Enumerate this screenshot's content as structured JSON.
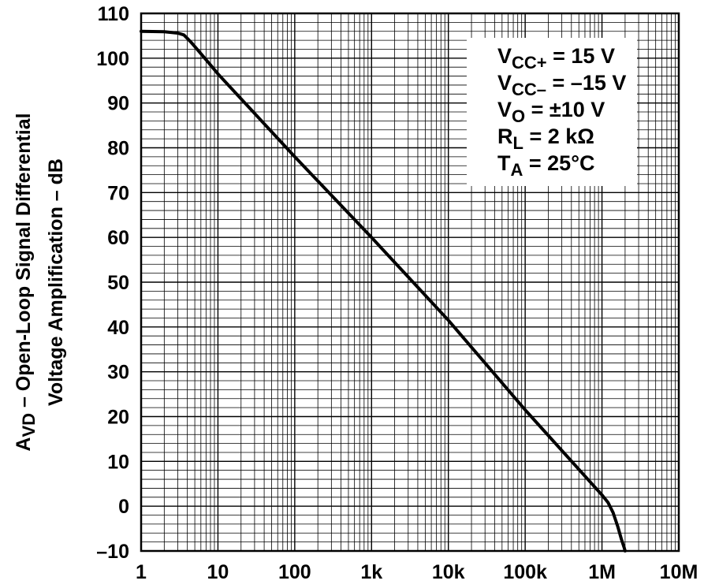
{
  "chart_data": {
    "type": "line",
    "xscale": "log",
    "xlim": [
      1,
      10000000
    ],
    "ylim": [
      -10,
      110
    ],
    "grid": true,
    "xticks": [
      {
        "value": 1,
        "label": "1"
      },
      {
        "value": 10,
        "label": "10"
      },
      {
        "value": 100,
        "label": "100"
      },
      {
        "value": 1000,
        "label": "1k"
      },
      {
        "value": 10000,
        "label": "10k"
      },
      {
        "value": 100000,
        "label": "100k"
      },
      {
        "value": 1000000,
        "label": "1M"
      },
      {
        "value": 10000000,
        "label": "10M"
      }
    ],
    "yticks": [
      {
        "value": 110,
        "label": "110"
      },
      {
        "value": 100,
        "label": "100"
      },
      {
        "value": 90,
        "label": "90"
      },
      {
        "value": 80,
        "label": "80"
      },
      {
        "value": 70,
        "label": "70"
      },
      {
        "value": 60,
        "label": "60"
      },
      {
        "value": 50,
        "label": "50"
      },
      {
        "value": 40,
        "label": "40"
      },
      {
        "value": 30,
        "label": "30"
      },
      {
        "value": 20,
        "label": "20"
      },
      {
        "value": 10,
        "label": "10"
      },
      {
        "value": 0,
        "label": "0"
      },
      {
        "value": -10,
        "label": "–10"
      }
    ],
    "ylabel": {
      "line1_main": "A",
      "line1_sub": "VD",
      "line1_rest": " – Open-Loop Signal Differential",
      "line2": "Voltage Amplification – dB"
    },
    "xlabel": "",
    "series": [
      {
        "x": [
          1,
          2,
          3,
          3.6,
          4,
          4.5,
          5,
          6,
          8,
          10,
          100,
          1000,
          10000,
          100000,
          1000000,
          1200000,
          1400000,
          1600000,
          1800000,
          1950000,
          2000000
        ],
        "y": [
          106,
          105.9,
          105.6,
          105.2,
          104.4,
          103.5,
          102.6,
          101,
          98.5,
          96.5,
          78,
          60,
          41.5,
          21.5,
          2.5,
          0.8,
          -1.5,
          -4.5,
          -7.5,
          -9.3,
          -10
        ]
      }
    ],
    "annotations": [
      {
        "main": "V",
        "sub": "CC+",
        "rest": " = 15 V"
      },
      {
        "main": "V",
        "sub": "CC–",
        "rest": " = –15 V"
      },
      {
        "main": "V",
        "sub": "O",
        "rest": " = ±10 V"
      },
      {
        "main": "R",
        "sub": "L",
        "rest": " = 2 kΩ"
      },
      {
        "main": "T",
        "sub": "A",
        "rest": " = 25°C"
      }
    ],
    "colors": {
      "line": "#000000",
      "grid": "#000000",
      "background": "#ffffff"
    }
  }
}
